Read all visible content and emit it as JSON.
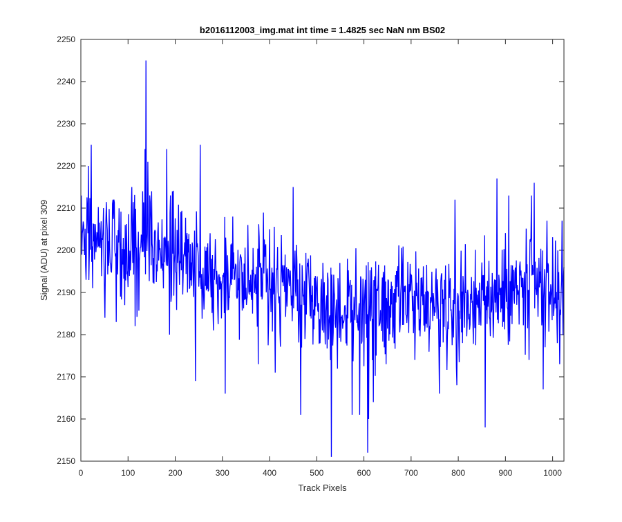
{
  "chart_data": {
    "type": "line",
    "title": "b2016112003_img.mat int time = 1.4825 sec  NaN nm BS02",
    "xlabel": "Track Pixels",
    "ylabel": "Signal (ADU) at pixel 309",
    "xlim": [
      0,
      1024
    ],
    "ylim": [
      2150,
      2250
    ],
    "xticks": [
      0,
      100,
      200,
      300,
      400,
      500,
      600,
      700,
      800,
      900,
      1000
    ],
    "yticks": [
      2150,
      2160,
      2170,
      2180,
      2190,
      2200,
      2210,
      2220,
      2230,
      2240,
      2250
    ],
    "grid": false,
    "series": [
      {
        "color": "#0000ff",
        "x_start": 1,
        "x_step": 1,
        "trend": [
          [
            0,
            2203
          ],
          [
            30,
            2204
          ],
          [
            60,
            2201
          ],
          [
            100,
            2200
          ],
          [
            140,
            2202
          ],
          [
            180,
            2200
          ],
          [
            250,
            2197
          ],
          [
            300,
            2195
          ],
          [
            400,
            2192
          ],
          [
            450,
            2190
          ],
          [
            500,
            2188
          ],
          [
            550,
            2186
          ],
          [
            600,
            2186
          ],
          [
            650,
            2186
          ],
          [
            700,
            2187
          ],
          [
            800,
            2188
          ],
          [
            900,
            2190
          ],
          [
            1024,
            2191
          ]
        ],
        "noise_sd": 6,
        "peaks": [
          [
            1,
            2213
          ],
          [
            11,
            2193
          ],
          [
            16,
            2220
          ],
          [
            22,
            2225
          ],
          [
            25,
            2191
          ],
          [
            48,
            2210
          ],
          [
            51,
            2184
          ],
          [
            68,
            2212
          ],
          [
            75,
            2183
          ],
          [
            93,
            2187
          ],
          [
            108,
            2215
          ],
          [
            115,
            2182
          ],
          [
            131,
            2214
          ],
          [
            136,
            2224
          ],
          [
            138,
            2245
          ],
          [
            142,
            2221
          ],
          [
            150,
            2214
          ],
          [
            162,
            2195
          ],
          [
            182,
            2224
          ],
          [
            188,
            2180
          ],
          [
            226,
            2190
          ],
          [
            243,
            2169
          ],
          [
            253,
            2225
          ],
          [
            281,
            2181
          ],
          [
            306,
            2166
          ],
          [
            322,
            2208
          ],
          [
            354,
            2206
          ],
          [
            376,
            2173
          ],
          [
            400,
            2205
          ],
          [
            412,
            2171
          ],
          [
            450,
            2215
          ],
          [
            466,
            2161
          ],
          [
            482,
            2198
          ],
          [
            512,
            2181
          ],
          [
            531,
            2151
          ],
          [
            549,
            2197
          ],
          [
            565,
            2198
          ],
          [
            575,
            2161
          ],
          [
            591,
            2161
          ],
          [
            603,
            2193
          ],
          [
            608,
            2152
          ],
          [
            610,
            2160
          ],
          [
            620,
            2164
          ],
          [
            647,
            2173
          ],
          [
            681,
            2196
          ],
          [
            701,
            2194
          ],
          [
            708,
            2174
          ],
          [
            743,
            2188
          ],
          [
            760,
            2166
          ],
          [
            793,
            2212
          ],
          [
            797,
            2168
          ],
          [
            857,
            2158
          ],
          [
            882,
            2217
          ],
          [
            907,
            2213
          ],
          [
            950,
            2174
          ],
          [
            955,
            2213
          ],
          [
            961,
            2216
          ],
          [
            980,
            2167
          ],
          [
            1010,
            2178
          ],
          [
            1015,
            2173
          ],
          [
            1020,
            2207
          ],
          [
            1024,
            2196
          ]
        ]
      }
    ]
  }
}
